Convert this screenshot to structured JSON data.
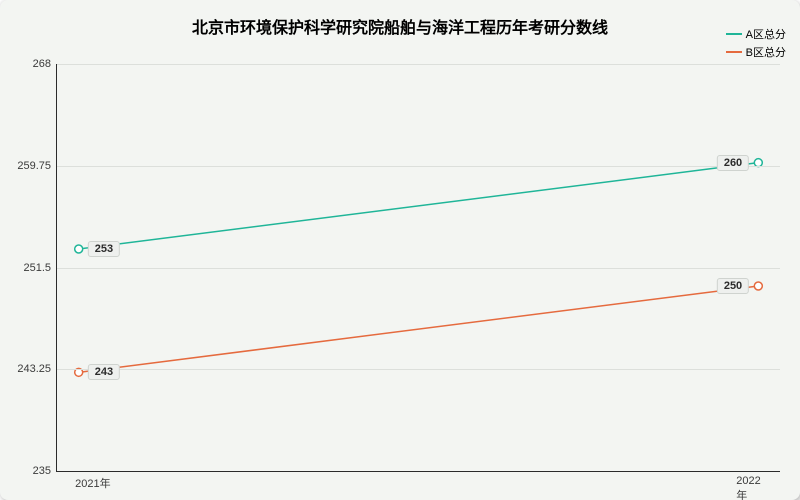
{
  "chart": {
    "type": "line",
    "title": "北京市环境保护科学研究院船舶与海洋工程历年考研分数线",
    "title_fontsize": 16,
    "title_weight": "bold",
    "background_color": "#f3f5f2",
    "axis_color": "#2b2b2b",
    "grid_color": "#dcdfdb",
    "tick_font_color": "#3a3a3a",
    "tick_fontsize": 11,
    "ylim": [
      235,
      268
    ],
    "yticks": [
      235,
      243.25,
      251.5,
      259.75,
      268
    ],
    "ytick_labels": [
      "235",
      "243.25",
      "251.5",
      "259.75",
      "268"
    ],
    "x_categories": [
      "2021年",
      "2022年"
    ],
    "x_positions_pct": [
      3,
      97
    ],
    "series": [
      {
        "name": "A区总分",
        "color": "#1fb598",
        "line_width": 1.5,
        "marker": "circle",
        "marker_size": 4,
        "marker_fill": "#ffffff",
        "values": [
          253,
          260
        ],
        "value_labels": [
          "253",
          "260"
        ]
      },
      {
        "name": "B区总分",
        "color": "#e56a3e",
        "line_width": 1.5,
        "marker": "circle",
        "marker_size": 4,
        "marker_fill": "#ffffff",
        "values": [
          243,
          250
        ],
        "value_labels": [
          "243",
          "250"
        ]
      }
    ],
    "label_pill": {
      "bg": "#eef0ee",
      "border": "#cfd3cf",
      "font_color": "#2b2b2b",
      "font_weight": "bold",
      "fontsize": 11
    }
  }
}
